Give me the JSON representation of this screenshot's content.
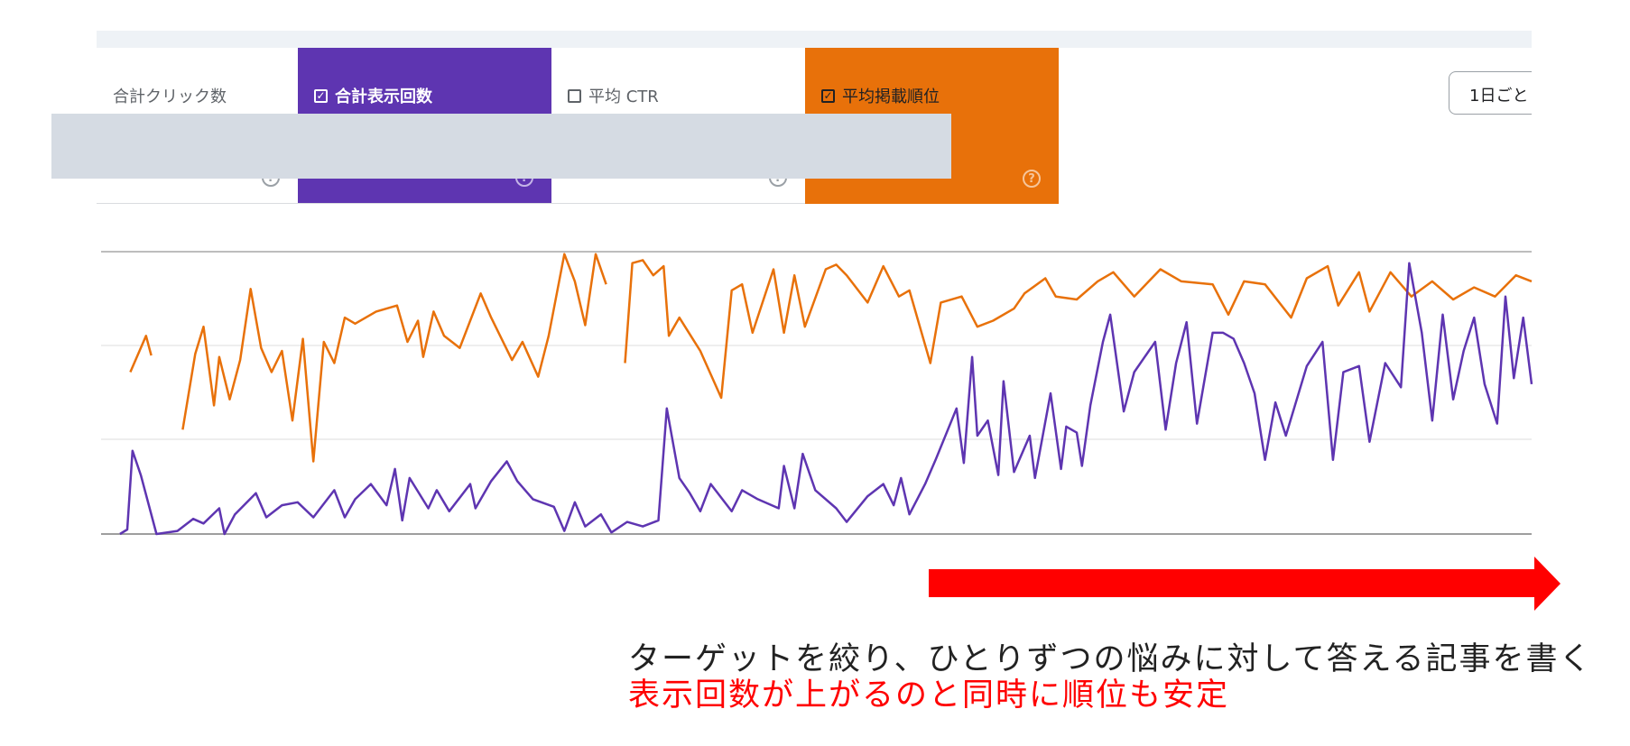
{
  "metrics_tabs": [
    {
      "label": "合計クリック数",
      "checked": null,
      "active": false
    },
    {
      "label": "合計表示回数",
      "checked": true,
      "active": true,
      "color": "#5e35b1"
    },
    {
      "label": "平均 CTR",
      "checked": false,
      "active": false
    },
    {
      "label": "平均掲載順位",
      "checked": true,
      "active": true,
      "color": "#e8710a"
    }
  ],
  "help_icon": "question-circle-icon",
  "checkbox_icon": "check-icon",
  "granularity_button": "1日ごと",
  "annotation": {
    "line1": "ターゲットを絞り、ひとりずつの悩みに対して答える記事を書く",
    "line2": "表示回数が上がるのと同時に順位も安定",
    "arrow_color": "#ff0000",
    "line2_color": "#ff0000"
  },
  "chart_data": {
    "type": "line",
    "title": "",
    "xlabel": "",
    "ylabel": "",
    "xlim": [
      0,
      1368
    ],
    "ylim": [
      0,
      93.3
    ],
    "grid": true,
    "series": [
      {
        "name": "平均掲載順位",
        "color": "#e8710a",
        "points": [
          [
            28,
            53.5
          ],
          [
            43,
            65.5
          ],
          [
            48,
            59
          ],
          null,
          [
            78,
            34.5
          ],
          [
            90,
            59.5
          ],
          [
            98,
            68.5
          ],
          [
            108,
            42.5
          ],
          [
            113,
            58.5
          ],
          [
            123,
            44.5
          ],
          [
            133,
            57.5
          ],
          [
            143,
            81
          ],
          [
            153,
            61.5
          ],
          [
            163,
            53.5
          ],
          [
            173,
            60.5
          ],
          [
            183,
            37.5
          ],
          [
            193,
            64.5
          ],
          [
            203,
            24
          ],
          [
            213,
            63.5
          ],
          [
            223,
            56.5
          ],
          [
            233,
            71.5
          ],
          [
            243,
            69.5
          ],
          [
            263,
            73.5
          ],
          [
            283,
            75.5
          ],
          [
            293,
            63.5
          ],
          [
            303,
            70.5
          ],
          [
            308,
            58.5
          ],
          [
            318,
            73.5
          ],
          [
            328,
            65.5
          ],
          [
            343,
            61.5
          ],
          [
            363,
            79.5
          ],
          [
            373,
            71.5
          ],
          [
            393,
            57.5
          ],
          [
            403,
            63.5
          ],
          [
            418,
            52
          ],
          [
            428,
            65.5
          ],
          [
            443,
            92.5
          ],
          [
            453,
            83.5
          ],
          [
            463,
            69
          ],
          [
            473,
            92.5
          ],
          [
            483,
            82.5
          ],
          null,
          [
            501,
            56.5
          ],
          [
            508,
            89.5
          ],
          [
            518,
            90.5
          ],
          [
            528,
            85.5
          ],
          [
            538,
            88.5
          ],
          [
            543,
            65.5
          ],
          [
            553,
            71.5
          ],
          [
            573,
            60.5
          ],
          [
            593,
            45
          ],
          [
            603,
            80.5
          ],
          [
            613,
            82.5
          ],
          [
            623,
            66.5
          ],
          [
            643,
            87.5
          ],
          [
            653,
            66.5
          ],
          [
            663,
            85.5
          ],
          [
            673,
            68.5
          ],
          [
            693,
            87.5
          ],
          [
            703,
            89
          ],
          [
            713,
            85.5
          ],
          [
            733,
            76.5
          ],
          [
            748,
            88.5
          ],
          [
            763,
            78.5
          ],
          [
            773,
            80.5
          ],
          [
            793,
            56.5
          ],
          [
            803,
            76.5
          ],
          [
            823,
            78.5
          ],
          [
            838,
            68.5
          ],
          [
            853,
            70.5
          ],
          [
            873,
            74.5
          ],
          [
            883,
            79.5
          ],
          [
            903,
            84.5
          ],
          [
            913,
            78.5
          ],
          [
            933,
            77.5
          ],
          [
            953,
            83.5
          ],
          [
            968,
            86.5
          ],
          [
            988,
            78.5
          ],
          [
            1013,
            87.5
          ],
          [
            1033,
            83.5
          ],
          [
            1063,
            82.5
          ],
          [
            1078,
            72.5
          ],
          [
            1093,
            83.5
          ],
          [
            1113,
            82.5
          ],
          [
            1138,
            71.5
          ],
          [
            1153,
            84.5
          ],
          [
            1173,
            88.5
          ],
          [
            1183,
            75.5
          ],
          [
            1203,
            86.5
          ],
          [
            1213,
            73.5
          ],
          [
            1233,
            86.5
          ],
          [
            1253,
            78.5
          ],
          [
            1273,
            83.5
          ],
          [
            1293,
            77.5
          ],
          [
            1313,
            81.5
          ],
          [
            1333,
            78.5
          ],
          [
            1353,
            85.5
          ],
          [
            1368,
            83.5
          ]
        ]
      },
      {
        "name": "合計表示回数",
        "color": "#5e35b1",
        "points": [
          [
            18,
            0
          ],
          [
            25,
            1.5
          ],
          [
            30,
            27.5
          ],
          [
            38,
            19.5
          ],
          [
            53,
            0
          ],
          [
            73,
            1
          ],
          [
            88,
            5
          ],
          [
            98,
            3.5
          ],
          [
            113,
            8.5
          ],
          [
            118,
            0
          ],
          [
            128,
            6.5
          ],
          [
            148,
            13.5
          ],
          [
            158,
            5.5
          ],
          [
            173,
            9.5
          ],
          [
            188,
            10.5
          ],
          [
            203,
            5.5
          ],
          [
            223,
            14.5
          ],
          [
            233,
            5.5
          ],
          [
            243,
            11.5
          ],
          [
            258,
            16.5
          ],
          [
            273,
            9.5
          ],
          [
            281,
            21.5
          ],
          [
            288,
            4.5
          ],
          [
            295,
            18.5
          ],
          [
            313,
            8.5
          ],
          [
            321,
            14.5
          ],
          [
            333,
            7.5
          ],
          [
            353,
            16.5
          ],
          [
            358,
            8.5
          ],
          [
            373,
            17.5
          ],
          [
            388,
            24
          ],
          [
            398,
            17.5
          ],
          [
            413,
            11.5
          ],
          [
            433,
            9
          ],
          [
            443,
            1
          ],
          [
            453,
            10.5
          ],
          [
            463,
            2.5
          ],
          [
            478,
            6.5
          ],
          [
            488,
            0.5
          ],
          [
            503,
            4
          ],
          [
            518,
            2.5
          ],
          [
            533,
            4.5
          ],
          [
            541,
            41.5
          ],
          [
            553,
            18.5
          ],
          [
            563,
            13.5
          ],
          [
            573,
            7.5
          ],
          [
            583,
            16.5
          ],
          [
            603,
            7.5
          ],
          [
            613,
            14.5
          ],
          [
            628,
            11.5
          ],
          [
            648,
            8.5
          ],
          [
            653,
            22.5
          ],
          [
            663,
            8.5
          ],
          [
            671,
            26.5
          ],
          [
            683,
            14.5
          ],
          [
            703,
            8.5
          ],
          [
            713,
            4
          ],
          [
            733,
            12.5
          ],
          [
            748,
            16.5
          ],
          [
            758,
            9.5
          ],
          [
            765,
            18.5
          ],
          [
            773,
            6.5
          ],
          [
            788,
            16.5
          ],
          [
            798,
            24.5
          ],
          [
            818,
            41.5
          ],
          [
            825,
            23.5
          ],
          [
            833,
            58.5
          ],
          [
            838,
            32.5
          ],
          [
            848,
            37.5
          ],
          [
            858,
            19.5
          ],
          [
            863,
            50.5
          ],
          [
            873,
            20.5
          ],
          [
            888,
            32.5
          ],
          [
            893,
            18.5
          ],
          [
            908,
            46.5
          ],
          [
            918,
            21.5
          ],
          [
            923,
            35.5
          ],
          [
            933,
            33.5
          ],
          [
            938,
            22.5
          ],
          [
            946,
            42.5
          ],
          [
            958,
            63.5
          ],
          [
            965,
            72.5
          ],
          [
            978,
            40.5
          ],
          [
            988,
            53.5
          ],
          [
            998,
            58.5
          ],
          [
            1008,
            63.5
          ],
          [
            1018,
            34.5
          ],
          [
            1028,
            56.5
          ],
          [
            1038,
            70
          ],
          [
            1048,
            36.5
          ],
          [
            1063,
            66.5
          ],
          [
            1073,
            66.5
          ],
          [
            1083,
            64.5
          ],
          [
            1093,
            56.5
          ],
          [
            1103,
            46.5
          ],
          [
            1113,
            24.5
          ],
          [
            1123,
            43.5
          ],
          [
            1133,
            32.5
          ],
          [
            1153,
            55.5
          ],
          [
            1168,
            63.5
          ],
          [
            1178,
            24.5
          ],
          [
            1188,
            53.5
          ],
          [
            1203,
            55.5
          ],
          [
            1213,
            30.5
          ],
          [
            1228,
            56.5
          ],
          [
            1243,
            48.5
          ],
          [
            1251,
            89.5
          ],
          [
            1263,
            66.5
          ],
          [
            1273,
            37.5
          ],
          [
            1283,
            72.5
          ],
          [
            1293,
            44.5
          ],
          [
            1303,
            60.5
          ],
          [
            1313,
            71.5
          ],
          [
            1323,
            49.5
          ],
          [
            1335,
            36.5
          ],
          [
            1343,
            78.5
          ],
          [
            1351,
            51.5
          ],
          [
            1360,
            71.5
          ],
          [
            1368,
            49.5
          ]
        ]
      }
    ]
  }
}
